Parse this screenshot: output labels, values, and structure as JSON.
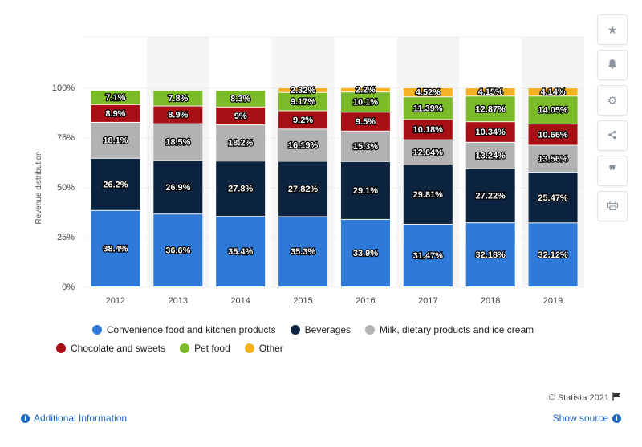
{
  "chart_data": {
    "type": "bar",
    "stacked": true,
    "categories": [
      "2012",
      "2013",
      "2014",
      "2015",
      "2016",
      "2017",
      "2018",
      "2019"
    ],
    "ylabel": "Revenue distribution",
    "ylim": [
      0,
      100
    ],
    "yticks": [
      "0%",
      "25%",
      "50%",
      "75%",
      "100%"
    ],
    "grid": true,
    "legend_position": "bottom",
    "series": [
      {
        "name": "Convenience food and kitchen products",
        "color": "#2f7ad9",
        "values": [
          38.4,
          36.6,
          35.4,
          35.3,
          33.9,
          31.47,
          32.18,
          32.12
        ],
        "labels": [
          "38.4%",
          "36.6%",
          "35.4%",
          "35.3%",
          "33.9%",
          "31.47%",
          "32.18%",
          "32.12%"
        ]
      },
      {
        "name": "Beverages",
        "color": "#0d2440",
        "values": [
          26.2,
          26.9,
          27.8,
          27.82,
          29.1,
          29.81,
          27.22,
          25.47
        ],
        "labels": [
          "26.2%",
          "26.9%",
          "27.8%",
          "27.82%",
          "29.1%",
          "29.81%",
          "27.22%",
          "25.47%"
        ]
      },
      {
        "name": "Milk, dietary products and ice cream",
        "color": "#b2b2b2",
        "values": [
          18.1,
          18.5,
          18.2,
          16.19,
          15.3,
          12.64,
          13.24,
          13.56
        ],
        "labels": [
          "18.1%",
          "18.5%",
          "18.2%",
          "16.19%",
          "15.3%",
          "12.64%",
          "13.24%",
          "13.56%"
        ]
      },
      {
        "name": "Chocolate and sweets",
        "color": "#a80f14",
        "values": [
          8.9,
          8.9,
          9.0,
          9.2,
          9.5,
          10.18,
          10.34,
          10.66
        ],
        "labels": [
          "8.9%",
          "8.9%",
          "9%",
          "9.2%",
          "9.5%",
          "10.18%",
          "10.34%",
          "10.66%"
        ]
      },
      {
        "name": "Pet food",
        "color": "#7bbb27",
        "values": [
          7.1,
          7.8,
          8.3,
          9.17,
          10.1,
          11.39,
          12.87,
          14.05
        ],
        "labels": [
          "7.1%",
          "7.8%",
          "8.3%",
          "9.17%",
          "10.1%",
          "11.39%",
          "12.87%",
          "14.05%"
        ]
      },
      {
        "name": "Other",
        "color": "#f5b324",
        "values": [
          0,
          0,
          0,
          2.32,
          2.2,
          4.52,
          4.15,
          4.14
        ],
        "labels": [
          "",
          "",
          "",
          "2.32%",
          "2.2%",
          "4.52%",
          "4.15%",
          "4.14%"
        ]
      }
    ]
  },
  "legend": {
    "rows": [
      [
        {
          "label": "Convenience food and kitchen products",
          "color": "#2f7ad9"
        },
        {
          "label": "Beverages",
          "color": "#0d2440"
        },
        {
          "label": "Milk, dietary products and ice cream",
          "color": "#b2b2b2"
        }
      ],
      [
        {
          "label": "Chocolate and sweets",
          "color": "#a80f14"
        },
        {
          "label": "Pet food",
          "color": "#7bbb27"
        },
        {
          "label": "Other",
          "color": "#f5b324"
        }
      ]
    ]
  },
  "toolbar": {
    "icons": [
      "star-icon",
      "bell-icon",
      "gear-icon",
      "share-icon",
      "quote-icon",
      "print-icon"
    ]
  },
  "footer": {
    "credit": "© Statista 2021",
    "additional_info": "Additional Information",
    "show_source": "Show source"
  }
}
